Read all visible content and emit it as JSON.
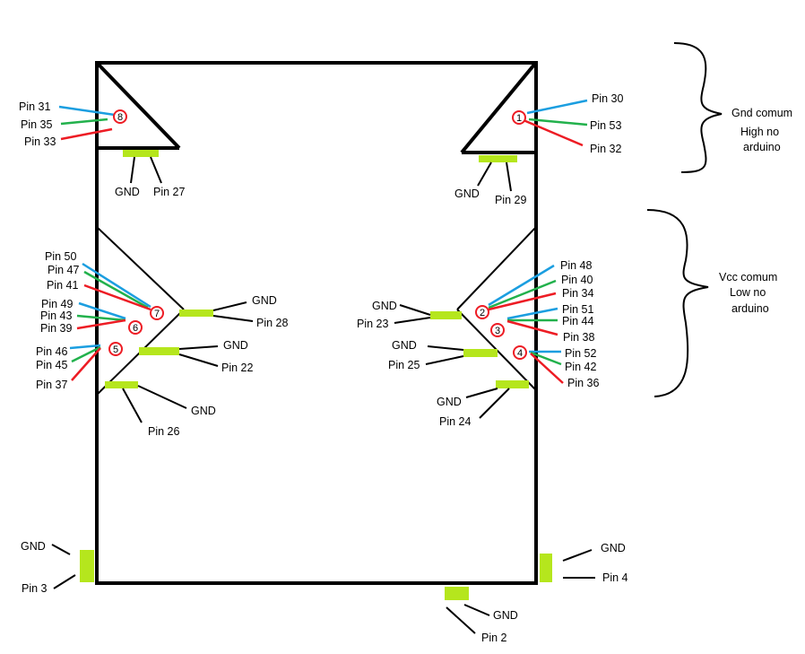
{
  "colors": {
    "pad": "#b5e61d",
    "blue_wire": "#1b9ee0",
    "green_wire": "#22b14c",
    "red_wire": "#ed1c24",
    "outline": "#000000"
  },
  "leds": [
    {
      "id": "8",
      "label": "8"
    },
    {
      "id": "1",
      "label": "1"
    },
    {
      "id": "7",
      "label": "7"
    },
    {
      "id": "6",
      "label": "6"
    },
    {
      "id": "5",
      "label": "5"
    },
    {
      "id": "2",
      "label": "2"
    },
    {
      "id": "3",
      "label": "3"
    },
    {
      "id": "4",
      "label": "4"
    }
  ],
  "labels": {
    "pin31": "Pin 31",
    "pin35": "Pin 35",
    "pin33": "Pin 33",
    "gnd_top_left": "GND",
    "pin27": "Pin 27",
    "pin30": "Pin 30",
    "pin53": "Pin 53",
    "pin32": "Pin 32",
    "gnd_top_right": "GND",
    "pin29": "Pin 29",
    "gnd_comum_1": "Gnd comum",
    "gnd_comum_2": "High no",
    "gnd_comum_3": "arduino",
    "vcc_comum_1": "Vcc comum",
    "vcc_comum_2": "Low no",
    "vcc_comum_3": "arduino",
    "pin50": "Pin 50",
    "pin47": "Pin 47",
    "pin41": "Pin 41",
    "pin49": "Pin 49",
    "pin43": "Pin 43",
    "pin39": "Pin 39",
    "pin46": "Pin 46",
    "pin45": "Pin 45",
    "pin37": "Pin 37",
    "gnd_28": "GND",
    "pin28": "Pin 28",
    "gnd_22": "GND",
    "pin22": "Pin 22",
    "gnd_26": "GND",
    "pin26": "Pin 26",
    "pin48": "Pin 48",
    "pin40": "Pin 40",
    "pin34": "Pin 34",
    "pin51": "Pin 51",
    "pin44": "Pin 44",
    "pin38": "Pin 38",
    "pin52": "Pin 52",
    "pin42": "Pin 42",
    "pin36": "Pin 36",
    "gnd_23": "GND",
    "pin23": "Pin 23",
    "gnd_25": "GND",
    "pin25": "Pin 25",
    "gnd_24": "GND",
    "pin24": "Pin 24",
    "gnd_3": "GND",
    "pin3": "Pin 3",
    "gnd_4": "GND",
    "pin4": "Pin 4",
    "gnd_2": "GND",
    "pin2": "Pin 2"
  }
}
